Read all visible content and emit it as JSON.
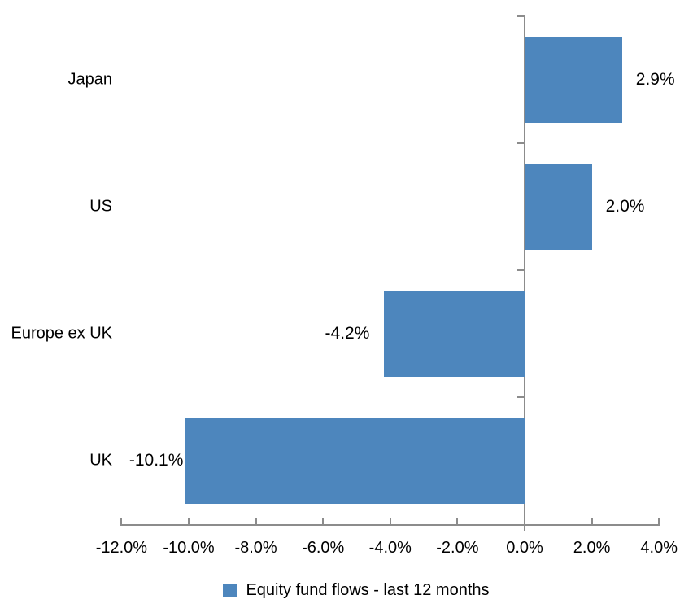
{
  "chart_data": {
    "type": "bar",
    "orientation": "horizontal",
    "title": "",
    "categories": [
      "Japan",
      "US",
      "Europe ex UK",
      "UK"
    ],
    "values": [
      2.9,
      2.0,
      -4.2,
      -10.1
    ],
    "data_labels": [
      "2.9%",
      "2.0%",
      "-4.2%",
      "-10.1%"
    ],
    "x_tick_labels": [
      "-12.0%",
      "-10.0%",
      "-8.0%",
      "-6.0%",
      "-4.0%",
      "-2.0%",
      "0.0%",
      "2.0%",
      "4.0%"
    ],
    "x_tick_values": [
      -12,
      -10,
      -8,
      -6,
      -4,
      -2,
      0,
      2,
      4
    ],
    "xlim": [
      -12,
      4
    ],
    "grid": false,
    "legend": {
      "position": "bottom",
      "entries": [
        {
          "label": "Equity fund flows - last 12 months",
          "color": "#4D86BD"
        }
      ]
    },
    "colors": {
      "bar": "#4D86BD",
      "axis": "#8C8C8C",
      "text": "#000000",
      "background": "#FFFFFF"
    }
  }
}
